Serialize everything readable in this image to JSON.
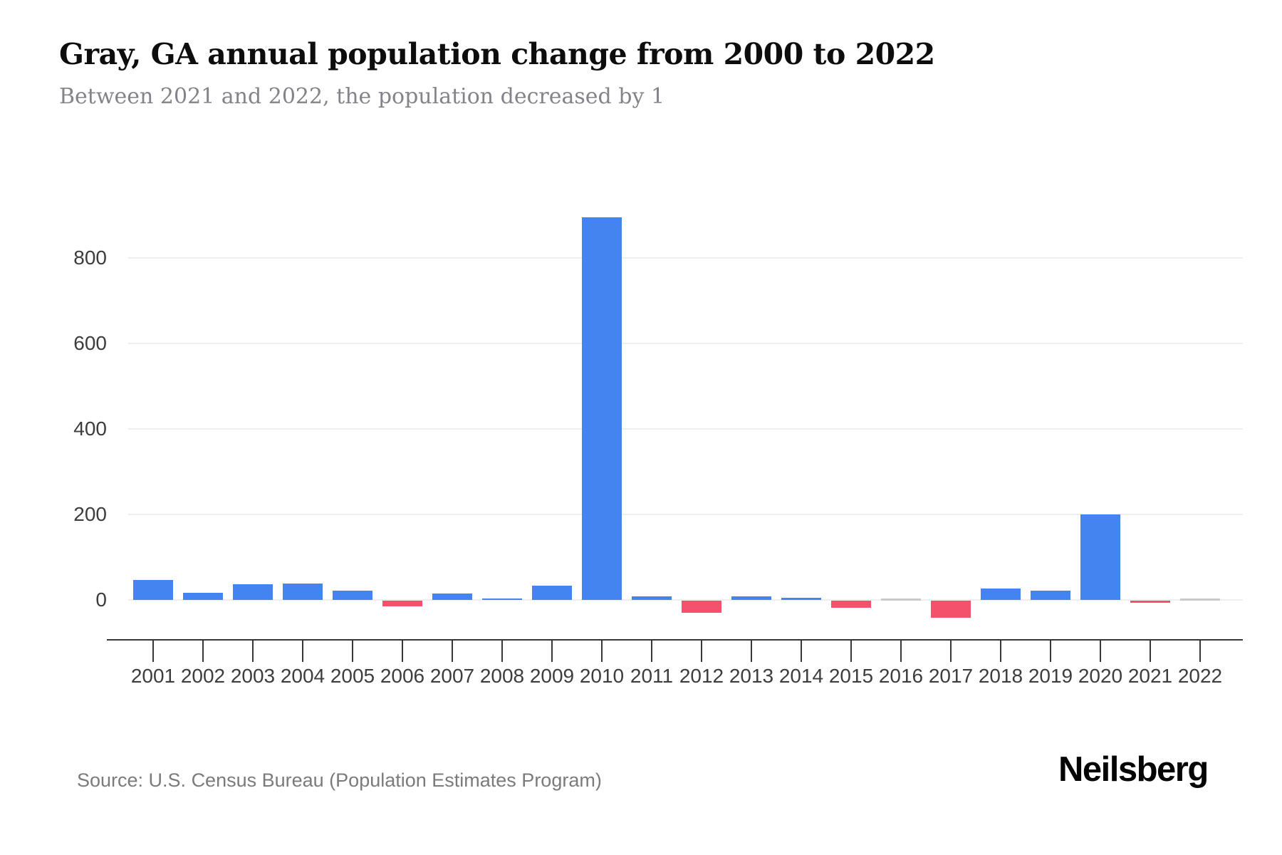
{
  "header": {
    "title": "Gray, GA annual population change from 2000 to 2022",
    "subtitle": "Between 2021 and 2022, the population decreased by 1"
  },
  "footer": {
    "source": "Source: U.S. Census Bureau (Population Estimates Program)",
    "logo_text": "Neilsberg"
  },
  "chart_data": {
    "type": "bar",
    "title": "Gray, GA annual population change from 2000 to 2022",
    "subtitle": "Between 2021 and 2022, the population decreased by 1",
    "xlabel": "",
    "ylabel": "",
    "categories": [
      "2001",
      "2002",
      "2003",
      "2004",
      "2005",
      "2006",
      "2007",
      "2008",
      "2009",
      "2010",
      "2011",
      "2012",
      "2013",
      "2014",
      "2015",
      "2016",
      "2017",
      "2018",
      "2019",
      "2020",
      "2021",
      "2022"
    ],
    "values": [
      47,
      16,
      36,
      39,
      22,
      -14,
      15,
      3,
      33,
      895,
      8,
      -28,
      8,
      5,
      -16,
      0,
      -40,
      26,
      21,
      200,
      -5,
      -1
    ],
    "y_ticks": [
      0,
      200,
      400,
      600,
      800
    ],
    "ylim": [
      -90,
      930
    ],
    "grid": true,
    "legend": "none",
    "colors": {
      "positive": "#4384f1",
      "negative": "#f4516c",
      "neutral": "#c9c9c9",
      "neutral_threshold": 1,
      "axis": "#383838",
      "gridline": "#efefef"
    }
  }
}
